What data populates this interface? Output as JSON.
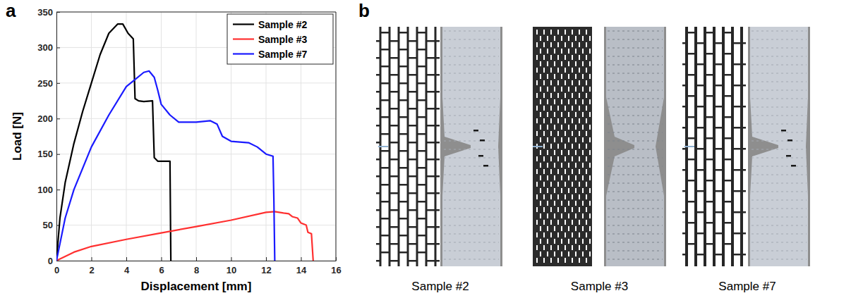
{
  "chart_data": {
    "type": "line",
    "x_label": "Displacement [mm]",
    "y_label": "Load [N]",
    "xlim": [
      0,
      16
    ],
    "xticks": [
      0,
      2,
      4,
      6,
      8,
      10,
      12,
      14,
      16
    ],
    "ylim": [
      0,
      350
    ],
    "yticks": [
      0,
      50,
      100,
      150,
      200,
      250,
      300,
      350
    ],
    "grid": true,
    "legend": "top-right",
    "series": [
      {
        "name": "Sample #2",
        "color": "#000000",
        "x": [
          0,
          0.2,
          0.5,
          1,
          1.5,
          2,
          2.5,
          3,
          3.5,
          3.8,
          4.1,
          4.4,
          4.5,
          4.7,
          5,
          5.5,
          5.6,
          5.8,
          6.5,
          6.55
        ],
        "values": [
          0,
          60,
          110,
          165,
          210,
          250,
          290,
          320,
          333,
          333,
          320,
          312,
          228,
          225,
          224,
          225,
          145,
          140,
          140,
          0
        ]
      },
      {
        "name": "Sample #3",
        "color": "#ff3030",
        "x": [
          0,
          1,
          2,
          4,
          6,
          8,
          10,
          12,
          12.5,
          13,
          13.3,
          13.5,
          13.8,
          14,
          14.3,
          14.4,
          14.6,
          14.7
        ],
        "values": [
          0,
          12,
          20,
          30,
          39,
          48,
          57,
          68,
          69,
          67,
          66,
          62,
          60,
          53,
          50,
          40,
          38,
          0
        ]
      },
      {
        "name": "Sample #7",
        "color": "#1a1aff",
        "x": [
          0,
          0.5,
          1,
          2,
          3,
          4,
          4.5,
          5,
          5.3,
          5.6,
          5.8,
          6,
          6.5,
          7,
          8,
          8.8,
          9.2,
          9.5,
          10,
          11,
          11.5,
          12,
          12.4,
          12.45,
          12.5
        ],
        "values": [
          0,
          60,
          100,
          160,
          205,
          245,
          255,
          265,
          267,
          258,
          240,
          220,
          205,
          195,
          195,
          197,
          192,
          175,
          168,
          166,
          160,
          150,
          147,
          85,
          0
        ]
      }
    ]
  },
  "panel_a": {
    "label": "a"
  },
  "panel_b": {
    "label": "b",
    "samples": [
      "Sample #2",
      "Sample #3",
      "Sample #7"
    ]
  }
}
